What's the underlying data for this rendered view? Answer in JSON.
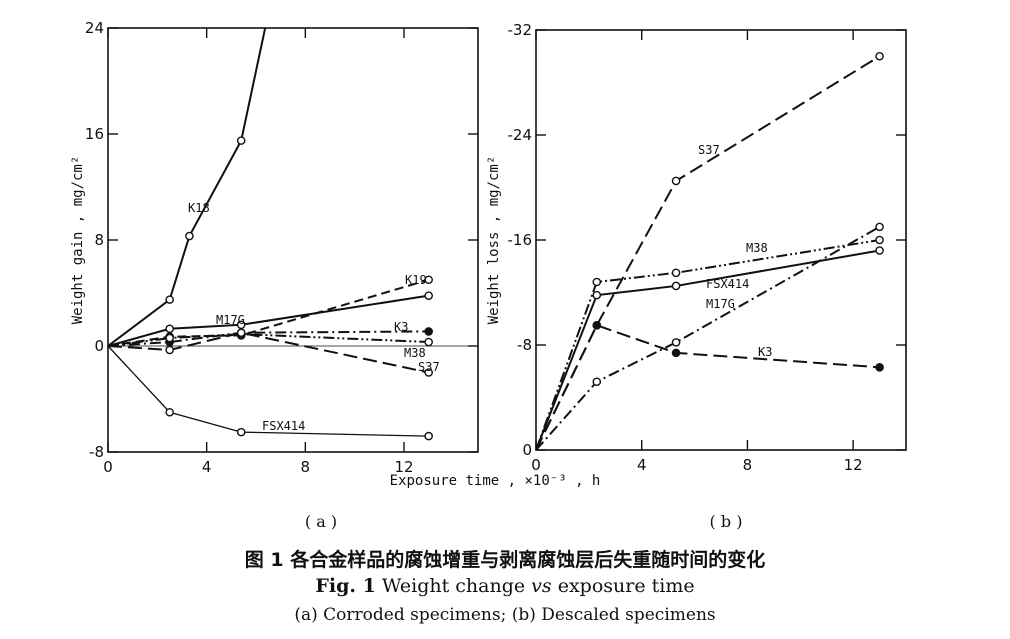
{
  "caption": {
    "cn": "图 1   各合金样品的腐蚀增重与剥离腐蚀层后失重随时间的变化",
    "fig_label": "Fig. 1",
    "title_part1": "Weight change",
    "vs": "vs",
    "title_part2": "exposure time",
    "sub": "(a) Corroded specimens;  (b) Descaled specimens"
  },
  "chart_data": [
    {
      "panel": "a",
      "panel_label": "( a )",
      "type": "line",
      "xlabel": "Exposure time , ×10⁻³ , h",
      "ylabel": "Weight gain , mg/cm²",
      "xlim": [
        0,
        15
      ],
      "ylim": [
        -8,
        24
      ],
      "xticks": [
        0,
        4,
        8,
        12
      ],
      "yticks": [
        -8,
        0,
        8,
        16,
        24
      ],
      "grid": "tick lines only",
      "series": [
        {
          "name": "K18",
          "style": "solid",
          "points": [
            [
              0,
              0
            ],
            [
              2.5,
              3.5
            ],
            [
              3.3,
              8.3
            ],
            [
              5.4,
              15.5
            ],
            [
              6.6,
              26
            ]
          ]
        },
        {
          "name": "K19",
          "style": "dashed",
          "points": [
            [
              0,
              0
            ],
            [
              2.5,
              0.7
            ],
            [
              5.4,
              0.8
            ],
            [
              13,
              5
            ]
          ]
        },
        {
          "name": "M17G",
          "style": "solid",
          "points": [
            [
              0,
              0
            ],
            [
              2.5,
              1.3
            ],
            [
              5.4,
              1.6
            ],
            [
              13,
              3.8
            ]
          ]
        },
        {
          "name": "K3",
          "style": "dash-dot",
          "points": [
            [
              0,
              0
            ],
            [
              2.5,
              0.3
            ],
            [
              5.4,
              1.0
            ],
            [
              13,
              1.1
            ]
          ]
        },
        {
          "name": "M38",
          "style": "dash-dot-dot",
          "points": [
            [
              0,
              0
            ],
            [
              2.5,
              0.6
            ],
            [
              5.4,
              0.9
            ],
            [
              13,
              0.3
            ]
          ]
        },
        {
          "name": "S37",
          "style": "long-dash",
          "points": [
            [
              0,
              0
            ],
            [
              2.5,
              -0.3
            ],
            [
              5.4,
              1.0
            ],
            [
              13,
              -2.0
            ]
          ]
        },
        {
          "name": "FSX414",
          "style": "solid-thin",
          "points": [
            [
              0,
              0
            ],
            [
              2.5,
              -5
            ],
            [
              5.4,
              -6.5
            ],
            [
              13,
              -6.8
            ]
          ]
        }
      ]
    },
    {
      "panel": "b",
      "panel_label": "( b )",
      "type": "line",
      "xlabel": "",
      "ylabel": "Weight loss , mg/cm²",
      "xlim": [
        0,
        14
      ],
      "ylim": [
        0,
        -32
      ],
      "xticks": [
        0,
        4,
        8,
        12
      ],
      "yticks": [
        0,
        -8,
        -16,
        -24,
        -32
      ],
      "grid": "tick lines only",
      "series": [
        {
          "name": "S37",
          "style": "long-dash",
          "points": [
            [
              0,
              0
            ],
            [
              2.3,
              -9.5
            ],
            [
              5.3,
              -20.5
            ],
            [
              13,
              -30
            ]
          ]
        },
        {
          "name": "M38",
          "style": "dash-dot-dot",
          "points": [
            [
              0,
              0
            ],
            [
              2.3,
              -12.8
            ],
            [
              5.3,
              -13.5
            ],
            [
              13,
              -16
            ]
          ]
        },
        {
          "name": "FSX414",
          "style": "solid",
          "points": [
            [
              0,
              0
            ],
            [
              2.3,
              -11.8
            ],
            [
              5.3,
              -12.5
            ],
            [
              13,
              -15.2
            ]
          ]
        },
        {
          "name": "M17G",
          "style": "dash-dot",
          "points": [
            [
              0,
              0
            ],
            [
              2.3,
              -5.2
            ],
            [
              5.3,
              -8.2
            ],
            [
              13,
              -17
            ]
          ]
        },
        {
          "name": "K3",
          "style": "long-dash",
          "points": [
            [
              0,
              0
            ],
            [
              2.3,
              -9.5
            ],
            [
              5.3,
              -7.4
            ],
            [
              13,
              -6.3
            ]
          ]
        }
      ]
    }
  ]
}
